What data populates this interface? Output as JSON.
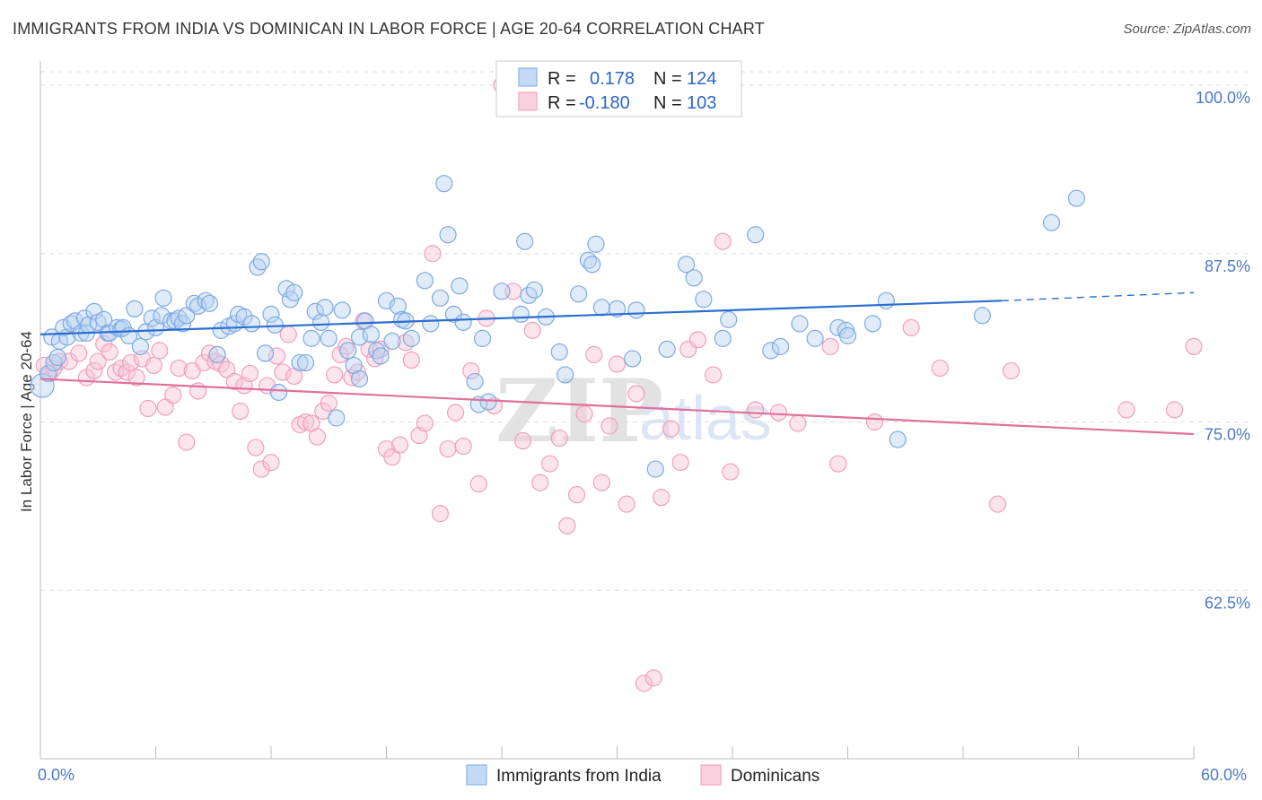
{
  "title": "IMMIGRANTS FROM INDIA VS DOMINICAN IN LABOR FORCE | AGE 20-64 CORRELATION CHART",
  "source": "Source: ZipAtlas.com",
  "watermark": {
    "part1": "ZIP",
    "part2": "atlas"
  },
  "legend_top": {
    "r_label": "R =",
    "n_label": "N =",
    "rows": [
      {
        "r": "0.178",
        "n": "124"
      },
      {
        "r": "-0.180",
        "n": "103"
      }
    ]
  },
  "chart_data": {
    "type": "scatter",
    "title": "IMMIGRANTS FROM INDIA VS DOMINICAN IN LABOR FORCE | AGE 20-64 CORRELATION CHART",
    "xlabel": "",
    "ylabel": "In Labor Force | Age 20-64",
    "xlim": [
      0,
      60
    ],
    "ylim": [
      50,
      101
    ],
    "x_tick_labels": [
      "0.0%",
      "60.0%"
    ],
    "y_ticks": [
      62.5,
      75.0,
      87.5,
      100.0
    ],
    "y_tick_labels": [
      "62.5%",
      "75.0%",
      "87.5%",
      "100.0%"
    ],
    "grid": "horizontal dashed",
    "legend_position": "top-center and bottom",
    "colors": {
      "india": "#8ab4e8",
      "india_line": "#2a6fcf",
      "dominican": "#f2a6c0",
      "dominican_line": "#e0709a"
    },
    "series": [
      {
        "name": "Immigrants from India",
        "color": "#8ab4e8",
        "trend": {
          "x": [
            0,
            50
          ],
          "y": [
            81.5,
            84.0
          ],
          "dashed_extension_to": [
            60,
            84.6
          ]
        },
        "points": [
          [
            0.1,
            77.7
          ],
          [
            0.4,
            78.6
          ],
          [
            0.6,
            81.3
          ],
          [
            0.7,
            79.4
          ],
          [
            0.9,
            79.8
          ],
          [
            1.0,
            81.0
          ],
          [
            1.2,
            82.0
          ],
          [
            1.4,
            81.3
          ],
          [
            1.6,
            82.3
          ],
          [
            1.8,
            82.5
          ],
          [
            2.1,
            81.6
          ],
          [
            2.3,
            82.7
          ],
          [
            2.4,
            81.6
          ],
          [
            2.5,
            82.2
          ],
          [
            2.8,
            83.2
          ],
          [
            3.0,
            82.4
          ],
          [
            3.3,
            82.6
          ],
          [
            3.5,
            81.6
          ],
          [
            3.6,
            81.6
          ],
          [
            4.0,
            82.0
          ],
          [
            4.2,
            81.9
          ],
          [
            4.3,
            82.0
          ],
          [
            4.6,
            81.4
          ],
          [
            4.9,
            83.4
          ],
          [
            5.2,
            80.6
          ],
          [
            5.5,
            81.7
          ],
          [
            5.8,
            82.7
          ],
          [
            6.0,
            82.0
          ],
          [
            6.3,
            82.9
          ],
          [
            6.4,
            84.2
          ],
          [
            6.8,
            82.5
          ],
          [
            7.0,
            82.5
          ],
          [
            7.2,
            82.7
          ],
          [
            7.4,
            82.3
          ],
          [
            7.6,
            82.9
          ],
          [
            8.0,
            83.8
          ],
          [
            8.2,
            83.6
          ],
          [
            8.6,
            84.0
          ],
          [
            8.8,
            83.8
          ],
          [
            9.2,
            80.0
          ],
          [
            9.4,
            81.8
          ],
          [
            9.8,
            82.1
          ],
          [
            10.1,
            82.3
          ],
          [
            10.3,
            83.0
          ],
          [
            10.6,
            82.8
          ],
          [
            11.0,
            82.3
          ],
          [
            11.3,
            86.5
          ],
          [
            11.5,
            86.9
          ],
          [
            11.7,
            80.1
          ],
          [
            12.0,
            83.0
          ],
          [
            12.2,
            82.2
          ],
          [
            12.4,
            77.2
          ],
          [
            12.8,
            84.9
          ],
          [
            13.0,
            84.1
          ],
          [
            13.2,
            84.6
          ],
          [
            13.5,
            79.4
          ],
          [
            13.8,
            79.4
          ],
          [
            14.1,
            81.2
          ],
          [
            14.3,
            83.2
          ],
          [
            14.6,
            82.4
          ],
          [
            14.8,
            83.5
          ],
          [
            15.0,
            81.2
          ],
          [
            15.4,
            75.3
          ],
          [
            15.7,
            83.3
          ],
          [
            16.0,
            80.3
          ],
          [
            16.3,
            79.2
          ],
          [
            16.6,
            81.3
          ],
          [
            16.9,
            82.5
          ],
          [
            16.6,
            78.2
          ],
          [
            17.2,
            81.5
          ],
          [
            17.5,
            80.3
          ],
          [
            17.7,
            79.9
          ],
          [
            18.0,
            84.0
          ],
          [
            18.3,
            81.0
          ],
          [
            18.6,
            83.6
          ],
          [
            18.8,
            82.6
          ],
          [
            19.0,
            82.5
          ],
          [
            19.3,
            81.2
          ],
          [
            20.0,
            85.5
          ],
          [
            20.3,
            82.3
          ],
          [
            20.8,
            84.2
          ],
          [
            21.0,
            92.7
          ],
          [
            21.2,
            88.9
          ],
          [
            21.5,
            83.0
          ],
          [
            21.8,
            85.1
          ],
          [
            22.0,
            82.4
          ],
          [
            22.6,
            78.0
          ],
          [
            22.8,
            76.3
          ],
          [
            23.0,
            81.2
          ],
          [
            23.3,
            76.5
          ],
          [
            24.0,
            84.7
          ],
          [
            25.0,
            83.0
          ],
          [
            25.2,
            88.4
          ],
          [
            25.4,
            84.4
          ],
          [
            25.7,
            84.8
          ],
          [
            26.3,
            82.8
          ],
          [
            27.0,
            80.2
          ],
          [
            27.3,
            78.5
          ],
          [
            28.0,
            84.5
          ],
          [
            28.5,
            87.0
          ],
          [
            28.7,
            86.7
          ],
          [
            28.9,
            88.2
          ],
          [
            29.2,
            83.5
          ],
          [
            30.0,
            83.4
          ],
          [
            30.8,
            79.7
          ],
          [
            31.0,
            83.3
          ],
          [
            32.0,
            71.5
          ],
          [
            32.6,
            80.4
          ],
          [
            33.6,
            86.7
          ],
          [
            34.0,
            85.7
          ],
          [
            34.5,
            84.1
          ],
          [
            35.5,
            81.2
          ],
          [
            35.8,
            82.6
          ],
          [
            37.2,
            88.9
          ],
          [
            38.0,
            80.3
          ],
          [
            38.5,
            80.6
          ],
          [
            39.5,
            82.3
          ],
          [
            40.3,
            81.2
          ],
          [
            41.5,
            82.0
          ],
          [
            41.9,
            81.8
          ],
          [
            42.0,
            81.4
          ],
          [
            43.3,
            82.3
          ],
          [
            44.0,
            84.0
          ],
          [
            44.6,
            73.7
          ],
          [
            49.0,
            82.9
          ],
          [
            52.6,
            89.8
          ],
          [
            53.9,
            91.6
          ]
        ]
      },
      {
        "name": "Dominicans",
        "color": "#f2a6c0",
        "trend": {
          "x": [
            0,
            60
          ],
          "y": [
            78.2,
            74.1
          ]
        },
        "points": [
          [
            0.2,
            79.2
          ],
          [
            0.5,
            78.6
          ],
          [
            0.7,
            79.0
          ],
          [
            1.0,
            79.5
          ],
          [
            1.5,
            79.5
          ],
          [
            2.0,
            80.1
          ],
          [
            2.4,
            78.3
          ],
          [
            2.8,
            78.8
          ],
          [
            3.0,
            79.5
          ],
          [
            3.3,
            80.8
          ],
          [
            3.6,
            80.2
          ],
          [
            3.9,
            78.7
          ],
          [
            4.2,
            79.0
          ],
          [
            4.5,
            78.7
          ],
          [
            4.7,
            79.4
          ],
          [
            5.0,
            78.3
          ],
          [
            5.3,
            79.7
          ],
          [
            5.6,
            76.0
          ],
          [
            5.9,
            79.2
          ],
          [
            6.2,
            80.3
          ],
          [
            6.5,
            76.1
          ],
          [
            6.9,
            77.0
          ],
          [
            7.2,
            79.0
          ],
          [
            7.6,
            73.5
          ],
          [
            7.9,
            78.8
          ],
          [
            8.2,
            77.3
          ],
          [
            8.5,
            79.4
          ],
          [
            8.8,
            80.1
          ],
          [
            9.1,
            79.5
          ],
          [
            9.4,
            79.3
          ],
          [
            9.7,
            78.9
          ],
          [
            10.1,
            78.0
          ],
          [
            10.4,
            75.8
          ],
          [
            10.6,
            77.7
          ],
          [
            10.9,
            78.6
          ],
          [
            11.2,
            73.1
          ],
          [
            11.5,
            71.5
          ],
          [
            11.8,
            77.7
          ],
          [
            12.0,
            72.0
          ],
          [
            12.3,
            79.9
          ],
          [
            12.6,
            78.7
          ],
          [
            12.9,
            81.5
          ],
          [
            13.2,
            78.4
          ],
          [
            13.5,
            74.8
          ],
          [
            13.8,
            75.0
          ],
          [
            14.1,
            74.9
          ],
          [
            14.4,
            73.9
          ],
          [
            14.7,
            75.8
          ],
          [
            15.0,
            76.4
          ],
          [
            15.3,
            78.5
          ],
          [
            15.6,
            80.0
          ],
          [
            15.9,
            80.6
          ],
          [
            16.2,
            78.3
          ],
          [
            16.5,
            78.7
          ],
          [
            16.8,
            82.5
          ],
          [
            17.1,
            80.4
          ],
          [
            17.4,
            79.7
          ],
          [
            17.7,
            80.4
          ],
          [
            18.0,
            73.0
          ],
          [
            18.3,
            72.4
          ],
          [
            18.7,
            73.3
          ],
          [
            19.0,
            80.9
          ],
          [
            19.3,
            79.6
          ],
          [
            19.7,
            74.0
          ],
          [
            20.0,
            74.9
          ],
          [
            20.4,
            87.5
          ],
          [
            20.8,
            68.2
          ],
          [
            21.2,
            73.0
          ],
          [
            21.6,
            75.7
          ],
          [
            22.0,
            73.2
          ],
          [
            22.4,
            78.8
          ],
          [
            22.8,
            70.4
          ],
          [
            23.2,
            82.7
          ],
          [
            23.6,
            76.2
          ],
          [
            24.0,
            100.0
          ],
          [
            24.6,
            84.7
          ],
          [
            25.1,
            73.6
          ],
          [
            25.6,
            81.8
          ],
          [
            26.0,
            70.5
          ],
          [
            26.5,
            71.9
          ],
          [
            27.0,
            73.8
          ],
          [
            27.4,
            67.3
          ],
          [
            27.9,
            69.6
          ],
          [
            28.3,
            75.6
          ],
          [
            28.8,
            80.0
          ],
          [
            29.2,
            70.5
          ],
          [
            29.6,
            74.7
          ],
          [
            30.0,
            79.3
          ],
          [
            30.5,
            68.9
          ],
          [
            31.0,
            77.1
          ],
          [
            31.4,
            55.6
          ],
          [
            31.9,
            56.0
          ],
          [
            32.3,
            69.4
          ],
          [
            32.8,
            74.5
          ],
          [
            33.3,
            72.0
          ],
          [
            33.7,
            80.4
          ],
          [
            34.2,
            81.1
          ],
          [
            35.0,
            78.5
          ],
          [
            35.5,
            88.4
          ],
          [
            35.9,
            71.3
          ],
          [
            37.2,
            75.9
          ],
          [
            38.4,
            75.7
          ],
          [
            39.4,
            74.9
          ],
          [
            41.1,
            80.6
          ],
          [
            41.5,
            71.9
          ],
          [
            43.4,
            75.0
          ],
          [
            45.3,
            82.0
          ],
          [
            46.8,
            79.0
          ],
          [
            49.8,
            68.9
          ],
          [
            50.5,
            78.8
          ],
          [
            56.5,
            75.9
          ],
          [
            59.0,
            75.9
          ],
          [
            60.0,
            80.6
          ]
        ]
      }
    ]
  },
  "legend_bottom": {
    "items": [
      {
        "label": "Immigrants from India"
      },
      {
        "label": "Dominicans"
      }
    ]
  }
}
